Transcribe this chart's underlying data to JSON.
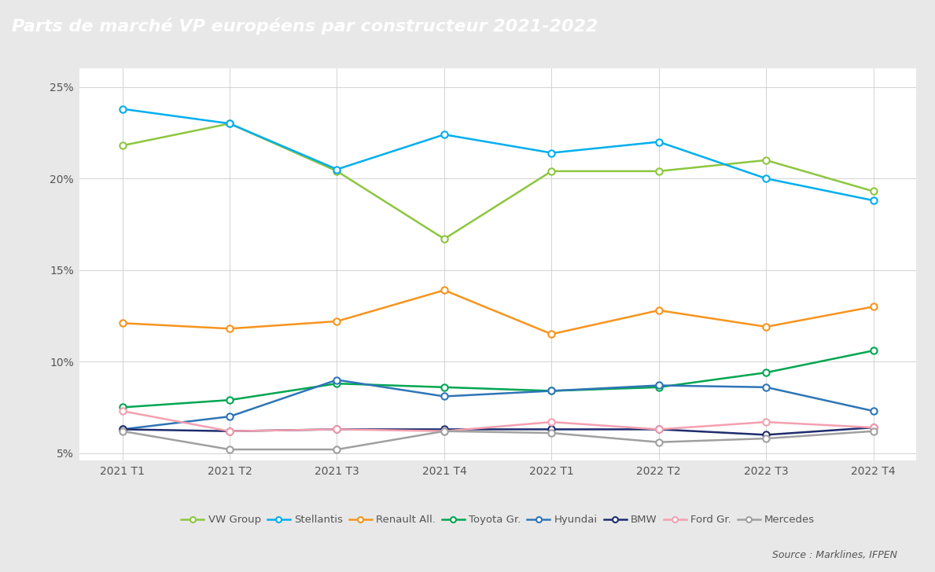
{
  "title": "Parts de marché VP européens par constructeur 2021-2022",
  "x_labels": [
    "2021 T1",
    "2021 T2",
    "2021 T3",
    "2021 T4",
    "2022 T1",
    "2022 T2",
    "2022 T3",
    "2022 T4"
  ],
  "y_ticks": [
    0.05,
    0.1,
    0.15,
    0.2,
    0.25
  ],
  "y_tick_labels": [
    "5%",
    "10%",
    "15%",
    "20%",
    "25%"
  ],
  "ylim": [
    0.046,
    0.26
  ],
  "series": {
    "VW Group": {
      "values": [
        0.218,
        0.23,
        0.204,
        0.167,
        0.204,
        0.204,
        0.21,
        0.193
      ],
      "color": "#8dc63f",
      "linewidth": 1.8,
      "markersize": 6
    },
    "Stellantis": {
      "values": [
        0.238,
        0.23,
        0.205,
        0.224,
        0.214,
        0.22,
        0.2,
        0.188
      ],
      "color": "#00aeef",
      "linewidth": 1.8,
      "markersize": 6
    },
    "Renault All.": {
      "values": [
        0.121,
        0.118,
        0.122,
        0.139,
        0.115,
        0.128,
        0.119,
        0.13
      ],
      "color": "#f7941d",
      "linewidth": 1.8,
      "markersize": 6
    },
    "Toyota Gr.": {
      "values": [
        0.075,
        0.079,
        0.088,
        0.086,
        0.084,
        0.086,
        0.094,
        0.106
      ],
      "color": "#00a651",
      "linewidth": 1.8,
      "markersize": 6
    },
    "Hyundai": {
      "values": [
        0.063,
        0.07,
        0.09,
        0.081,
        0.084,
        0.087,
        0.086,
        0.073
      ],
      "color": "#2e75b6",
      "linewidth": 1.8,
      "markersize": 6
    },
    "BMW": {
      "values": [
        0.063,
        0.062,
        0.063,
        0.063,
        0.063,
        0.063,
        0.06,
        0.064
      ],
      "color": "#1f2d6e",
      "linewidth": 1.8,
      "markersize": 6
    },
    "Ford Gr.": {
      "values": [
        0.073,
        0.062,
        0.063,
        0.062,
        0.067,
        0.063,
        0.067,
        0.064
      ],
      "color": "#f4a0b0",
      "linewidth": 1.8,
      "markersize": 6
    },
    "Mercedes": {
      "values": [
        0.062,
        0.052,
        0.052,
        0.062,
        0.061,
        0.056,
        0.058,
        0.062
      ],
      "color": "#a0a0a0",
      "linewidth": 1.8,
      "markersize": 6
    }
  },
  "title_bg_color": "#5a6070",
  "title_text_color": "#ffffff",
  "outer_bg_color": "#e8e8e8",
  "plot_bg_color": "#ffffff",
  "source_text": "Source : Marklines, IFPEN",
  "title_fontsize": 16,
  "axis_fontsize": 10,
  "legend_fontsize": 9.5
}
